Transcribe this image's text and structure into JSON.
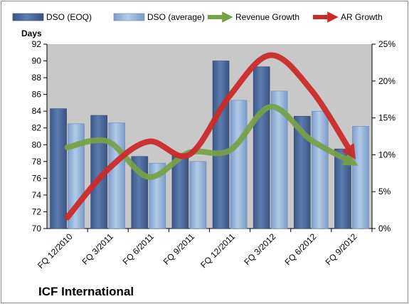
{
  "chart_data": {
    "type": "bar",
    "categories": [
      "FQ 12/2010",
      "FQ 3/2011",
      "FQ 6/2011",
      "FQ 9/2011",
      "FQ 12/2011",
      "FQ 3/2012",
      "FQ 6/2012",
      "FQ 9/2012"
    ],
    "series": [
      {
        "name": "DSO (EOQ)",
        "type": "bar",
        "axis": "left",
        "values": [
          84.3,
          83.5,
          78.6,
          78.9,
          90.0,
          89.3,
          83.4,
          79.5
        ],
        "color": "#4a6a9c"
      },
      {
        "name": "DSO (average)",
        "type": "bar",
        "axis": "left",
        "values": [
          82.5,
          82.6,
          77.8,
          78.0,
          85.3,
          86.4,
          84.0,
          82.2
        ],
        "color": "#8fb0d8"
      },
      {
        "name": "Revenue Growth",
        "type": "line",
        "axis": "right",
        "values": [
          11.0,
          11.8,
          7.0,
          10.3,
          10.6,
          16.5,
          12.0,
          9.0
        ],
        "color": "#77a246"
      },
      {
        "name": "AR Growth",
        "type": "line",
        "axis": "right",
        "values": [
          1.5,
          8.0,
          11.8,
          10.0,
          18.0,
          23.5,
          18.8,
          10.2
        ],
        "color": "#cc2a2a"
      }
    ],
    "y_left": {
      "label": "Days",
      "min": 70,
      "max": 92,
      "step": 2,
      "ticks": [
        "70",
        "72",
        "74",
        "76",
        "78",
        "80",
        "82",
        "84",
        "86",
        "88",
        "90",
        "92"
      ]
    },
    "y_right": {
      "min": 0,
      "max": 25,
      "step": 5,
      "ticks": [
        "0%",
        "5%",
        "10%",
        "15%",
        "20%",
        "25%"
      ]
    },
    "legend_position": "top",
    "grid": false,
    "plot_background": "#c8c8c8",
    "brand": "ICF International"
  }
}
